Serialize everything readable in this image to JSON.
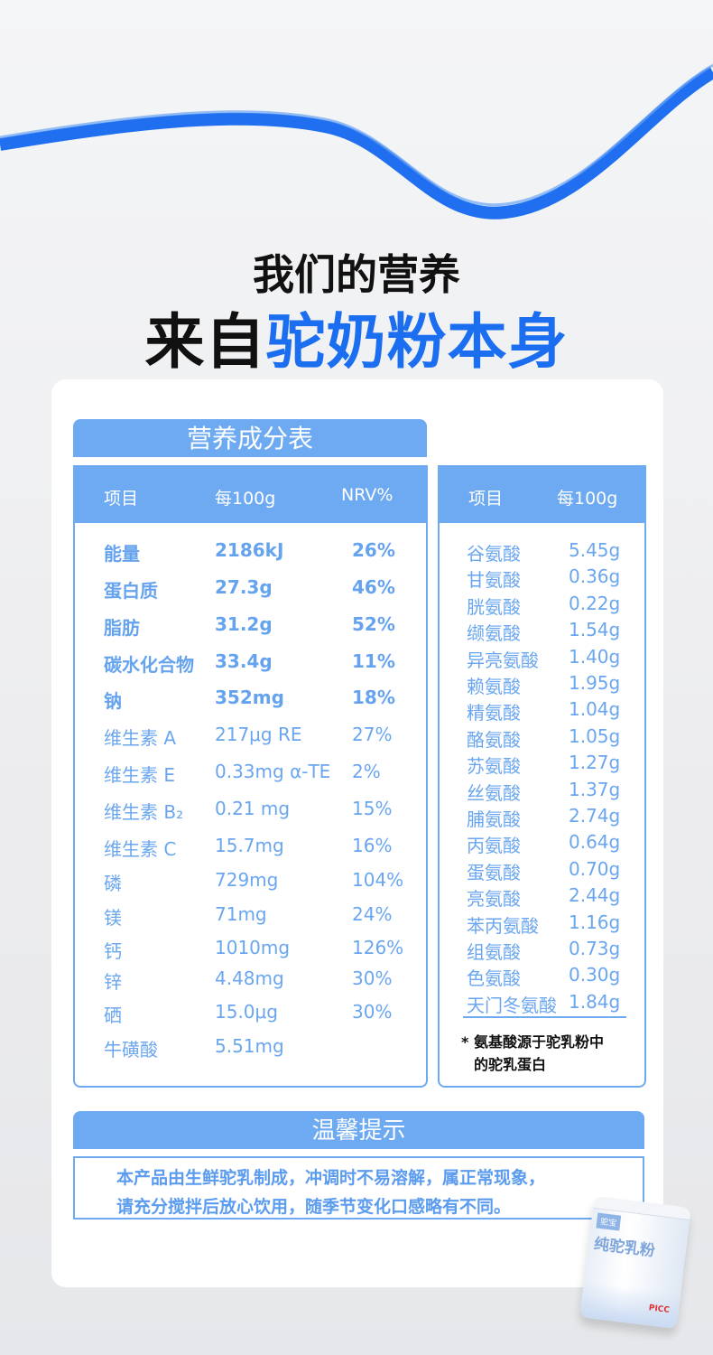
{
  "colors": {
    "accent": "#1c6ef0",
    "table_blue": "#6eaaf2",
    "text_blue": "#6aa6ef"
  },
  "headline": {
    "line1": "我们的营养",
    "line2_prefix": "来自",
    "line2_highlight": "驼奶粉本身"
  },
  "nutrition": {
    "title": "营养成分表",
    "headers": [
      "项目",
      "每100g",
      "NRV%"
    ],
    "rows": [
      {
        "item": "能量",
        "value": "2186kJ",
        "nrv": "26%",
        "bold": true
      },
      {
        "item": "蛋白质",
        "value": "27.3g",
        "nrv": "46%",
        "bold": true
      },
      {
        "item": "脂肪",
        "value": "31.2g",
        "nrv": "52%",
        "bold": true
      },
      {
        "item": "碳水化合物",
        "value": "33.4g",
        "nrv": "11%",
        "bold": true
      },
      {
        "item": "钠",
        "value": "352mg",
        "nrv": "18%",
        "bold": true
      },
      {
        "item": "维生素 A",
        "value": "217μg RE",
        "nrv": "27%"
      },
      {
        "item": "维生素 E",
        "value": "0.33mg α-TE",
        "nrv": "2%"
      },
      {
        "item": "维生素 B₂",
        "value": "0.21 mg",
        "nrv": "15%"
      },
      {
        "item": "维生素 C",
        "value": "15.7mg",
        "nrv": "16%"
      },
      {
        "item": "磷",
        "value": "729mg",
        "nrv": "104%"
      },
      {
        "item": "镁",
        "value": "71mg",
        "nrv": "24%"
      },
      {
        "item": "钙",
        "value": "1010mg",
        "nrv": "126%"
      },
      {
        "item": "锌",
        "value": "4.48mg",
        "nrv": "30%"
      },
      {
        "item": "硒",
        "value": "15.0μg",
        "nrv": "30%"
      },
      {
        "item": "牛磺酸",
        "value": "5.51mg",
        "nrv": ""
      }
    ]
  },
  "amino": {
    "headers": [
      "项目",
      "每100g"
    ],
    "rows": [
      {
        "item": "谷氨酸",
        "value": "5.45g"
      },
      {
        "item": "甘氨酸",
        "value": "0.36g"
      },
      {
        "item": "胱氨酸",
        "value": "0.22g"
      },
      {
        "item": "缬氨酸",
        "value": "1.54g"
      },
      {
        "item": "异亮氨酸",
        "value": "1.40g"
      },
      {
        "item": "赖氨酸",
        "value": "1.95g"
      },
      {
        "item": "精氨酸",
        "value": "1.04g"
      },
      {
        "item": "酪氨酸",
        "value": "1.05g"
      },
      {
        "item": "苏氨酸",
        "value": "1.27g"
      },
      {
        "item": "丝氨酸",
        "value": "1.37g"
      },
      {
        "item": "脯氨酸",
        "value": "2.74g"
      },
      {
        "item": "丙氨酸",
        "value": "0.64g"
      },
      {
        "item": "蛋氨酸",
        "value": "0.70g"
      },
      {
        "item": "亮氨酸",
        "value": "2.44g"
      },
      {
        "item": "苯丙氨酸",
        "value": "1.16g"
      },
      {
        "item": "组氨酸",
        "value": "0.73g"
      },
      {
        "item": "色氨酸",
        "value": "0.30g"
      },
      {
        "item": "天门冬氨酸",
        "value": "1.84g"
      }
    ],
    "note_line1": "* 氨基酸源于驼乳粉中",
    "note_line2": "的驼乳蛋白"
  },
  "tips": {
    "title": "温馨提示",
    "line1": "本产品由生鲜驼乳制成，冲调时不易溶解，属正常现象，",
    "line2": "请充分搅拌后放心饮用，随季节变化口感略有不同。"
  },
  "product": {
    "brand": "驼宝",
    "name": "纯驼乳粉",
    "logo_text": "PICC"
  }
}
